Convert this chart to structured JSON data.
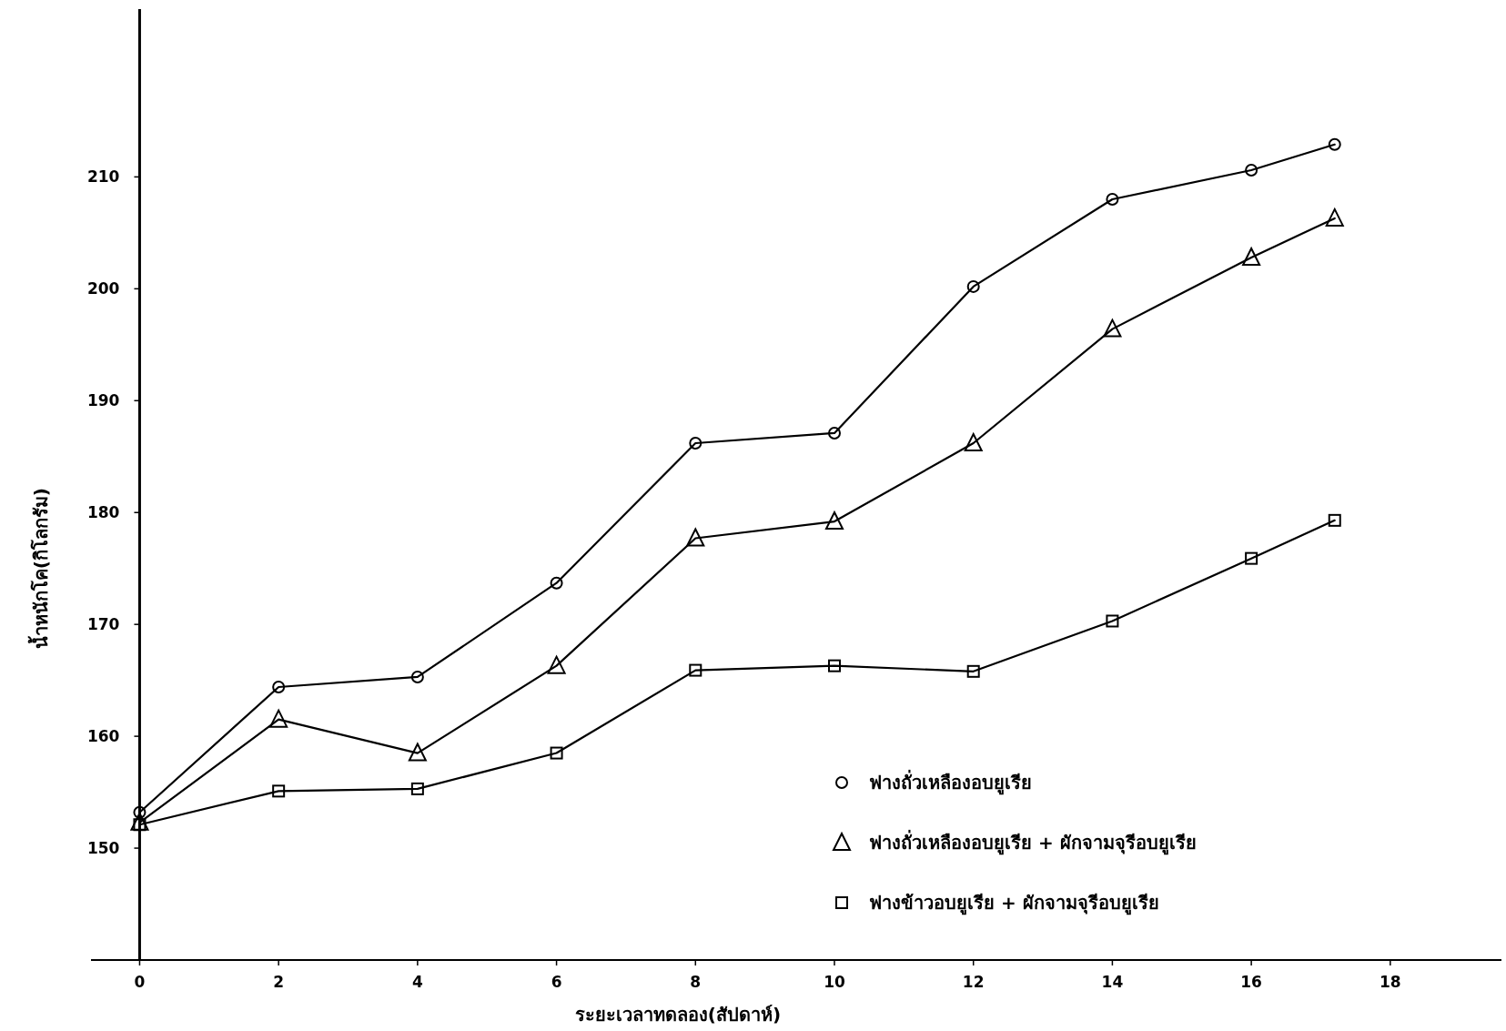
{
  "chart_data": {
    "type": "line",
    "xlabel": "ระยะเวลาทดลอง(สัปดาห์)",
    "ylabel": "น้ำหนักโค(กิโลกรัม)",
    "xlim": [
      -0.7,
      19.6
    ],
    "ylim": [
      140,
      225
    ],
    "xticks": [
      0,
      2,
      4,
      6,
      8,
      10,
      12,
      14,
      16,
      18
    ],
    "yticks": [
      150,
      160,
      170,
      180,
      190,
      200,
      210
    ],
    "x": [
      0,
      2,
      4,
      6,
      8,
      10,
      12,
      14,
      16,
      17.2
    ],
    "series": [
      {
        "name": "ฟางถั่วเหลืองอบยูเรีย",
        "color": "#000000",
        "marker": "circle",
        "values": [
          153.2,
          164.4,
          165.3,
          173.7,
          186.2,
          187.1,
          200.2,
          208.0,
          210.6,
          212.9
        ]
      },
      {
        "name": "ฟางถั่วเหลืองอบยูเรีย + ผักจามจุรีอบยูเรีย",
        "color": "#000000",
        "marker": "triangle",
        "values": [
          152.3,
          161.5,
          158.5,
          166.3,
          177.7,
          179.2,
          186.2,
          196.4,
          202.8,
          206.3
        ]
      },
      {
        "name": "ฟางข้าวอบยูเรีย + ผักจามจุรีอบยูเรีย",
        "color": "#000000",
        "marker": "square",
        "values": [
          152.1,
          155.1,
          155.3,
          158.5,
          165.9,
          166.3,
          165.8,
          170.3,
          175.9,
          179.3
        ]
      }
    ],
    "legend": "bottom right",
    "grid": false,
    "line_style": "solid"
  }
}
